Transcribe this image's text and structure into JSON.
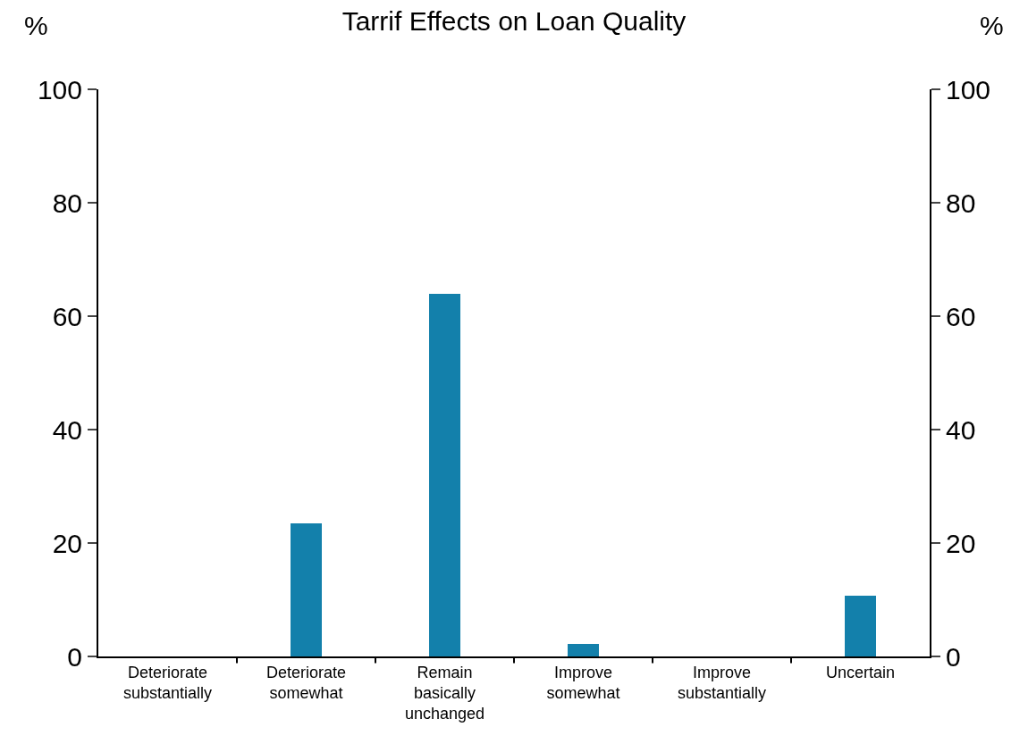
{
  "chart_data": {
    "type": "bar",
    "title": "Tarrif Effects on Loan Quality",
    "ylabel": "%",
    "y2label": "%",
    "categories": [
      "Deteriorate substantially",
      "Deteriorate somewhat",
      "Remain basically unchanged",
      "Improve somewhat",
      "Improve substantially",
      "Uncertain"
    ],
    "series": [
      {
        "color": "#1380ab",
        "values": [
          0,
          23.5,
          63.9,
          2.2,
          0,
          10.7
        ]
      }
    ],
    "ylim": [
      0,
      100
    ],
    "yticks": [
      0,
      20,
      40,
      60,
      80,
      100
    ],
    "y2lim": [
      0,
      100
    ],
    "y2ticks": [
      0,
      20,
      40,
      60,
      80,
      100
    ],
    "legend": false
  }
}
